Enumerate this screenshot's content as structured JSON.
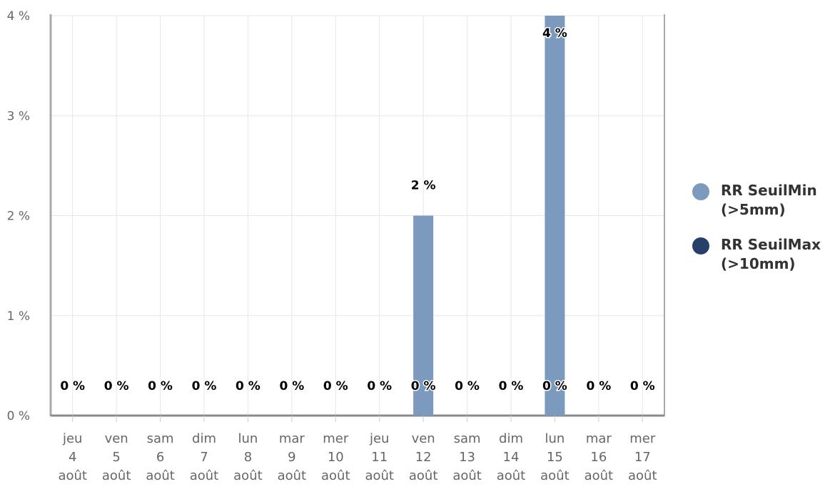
{
  "chart_data": {
    "type": "bar",
    "title": "",
    "xlabel": "",
    "ylabel": "",
    "ylim": [
      0,
      4
    ],
    "y_ticks": [
      "0 %",
      "1 %",
      "2 %",
      "3 %",
      "4 %"
    ],
    "grid": true,
    "legend_position": "right",
    "categories": [
      [
        "jeu",
        "4",
        "août"
      ],
      [
        "ven",
        "5",
        "août"
      ],
      [
        "sam",
        "6",
        "août"
      ],
      [
        "dim",
        "7",
        "août"
      ],
      [
        "lun",
        "8",
        "août"
      ],
      [
        "mar",
        "9",
        "août"
      ],
      [
        "mer",
        "10",
        "août"
      ],
      [
        "jeu",
        "11",
        "août"
      ],
      [
        "ven",
        "12",
        "août"
      ],
      [
        "sam",
        "13",
        "août"
      ],
      [
        "dim",
        "14",
        "août"
      ],
      [
        "lun",
        "15",
        "août"
      ],
      [
        "mar",
        "16",
        "août"
      ],
      [
        "mer",
        "17",
        "août"
      ]
    ],
    "series": [
      {
        "name": "RR SeuilMin (>5mm)",
        "color": "#7c9abd",
        "values": [
          0,
          0,
          0,
          0,
          0,
          0,
          0,
          0,
          2,
          0,
          0,
          4,
          0,
          0
        ],
        "labels": [
          "0 %",
          "0 %",
          "0 %",
          "0 %",
          "0 %",
          "0 %",
          "0 %",
          "0 %",
          "2 %",
          "0 %",
          "0 %",
          "4 %",
          "0 %",
          "0 %"
        ]
      },
      {
        "name": "RR SeuilMax (>10mm)",
        "color": "#26406a",
        "values": [
          0,
          0,
          0,
          0,
          0,
          0,
          0,
          0,
          0,
          0,
          0,
          0,
          0,
          0
        ],
        "labels": [
          "0 %",
          "0 %",
          "0 %",
          "0 %",
          "0 %",
          "0 %",
          "0 %",
          "0 %",
          "0 %",
          "0 %",
          "0 %",
          "0 %",
          "0 %",
          "0 %"
        ]
      }
    ]
  },
  "legend": {
    "items": [
      {
        "line1": "RR SeuilMin",
        "line2": "(>5mm)"
      },
      {
        "line1": "RR SeuilMax",
        "line2": "(>10mm)"
      }
    ]
  }
}
